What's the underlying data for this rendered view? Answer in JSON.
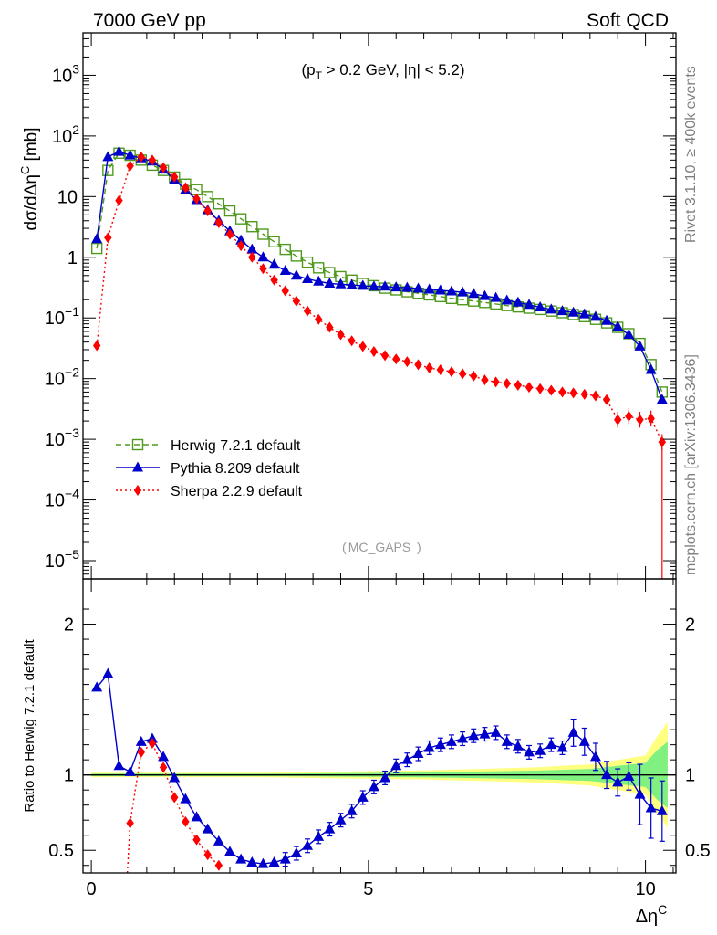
{
  "header": {
    "left": "7000 GeV pp",
    "right": "Soft QCD"
  },
  "side": {
    "top": "Rivet 3.1.10, ≥ 400k events",
    "bottom": "mcplots.cern.ch [arXiv:1306.3436]"
  },
  "annotation": "MC_GAPS",
  "chart_data": [
    {
      "type": "line",
      "panel": "main",
      "title": "(pT > 0.2 GeV, |η| < 5.2)",
      "ylabel": "dσ/dΔη^C [mb]",
      "yscale": "log",
      "ylim": [
        5e-06,
        5000
      ],
      "xlim": [
        -0.15,
        10.55
      ],
      "legend_position": "lower-left",
      "series": [
        {
          "name": "Herwig 7.2.1 default",
          "color": "#4f9a1e",
          "style": "dashed",
          "marker": "open-square",
          "x": [
            0.1,
            0.3,
            0.5,
            0.7,
            0.9,
            1.1,
            1.3,
            1.5,
            1.7,
            1.9,
            2.1,
            2.3,
            2.5,
            2.7,
            2.9,
            3.1,
            3.3,
            3.5,
            3.7,
            3.9,
            4.1,
            4.3,
            4.5,
            4.7,
            4.9,
            5.1,
            5.3,
            5.5,
            5.7,
            5.9,
            6.1,
            6.3,
            6.5,
            6.7,
            6.9,
            7.1,
            7.3,
            7.5,
            7.7,
            7.9,
            8.1,
            8.3,
            8.5,
            8.7,
            8.9,
            9.1,
            9.3,
            9.5,
            9.7,
            9.9,
            10.1,
            10.3
          ],
          "y": [
            1.4,
            27,
            52,
            48,
            40,
            33,
            27,
            21,
            16,
            13,
            10,
            7.6,
            5.8,
            4.3,
            3.2,
            2.4,
            1.8,
            1.35,
            1.05,
            0.83,
            0.67,
            0.56,
            0.48,
            0.42,
            0.37,
            0.34,
            0.31,
            0.29,
            0.27,
            0.255,
            0.24,
            0.225,
            0.21,
            0.2,
            0.19,
            0.18,
            0.17,
            0.16,
            0.152,
            0.145,
            0.138,
            0.13,
            0.122,
            0.114,
            0.105,
            0.095,
            0.083,
            0.07,
            0.055,
            0.038,
            0.017,
            0.006
          ]
        },
        {
          "name": "Pythia 8.209 default",
          "color": "#0000cc",
          "style": "solid",
          "marker": "triangle",
          "x": [
            0.1,
            0.3,
            0.5,
            0.7,
            0.9,
            1.1,
            1.3,
            1.5,
            1.7,
            1.9,
            2.1,
            2.3,
            2.5,
            2.7,
            2.9,
            3.1,
            3.3,
            3.5,
            3.7,
            3.9,
            4.1,
            4.3,
            4.5,
            4.7,
            4.9,
            5.1,
            5.3,
            5.5,
            5.7,
            5.9,
            6.1,
            6.3,
            6.5,
            6.7,
            6.9,
            7.1,
            7.3,
            7.5,
            7.7,
            7.9,
            8.1,
            8.3,
            8.5,
            8.7,
            8.9,
            9.1,
            9.3,
            9.5,
            9.7,
            9.9,
            10.1,
            10.3
          ],
          "y": [
            2.0,
            45,
            55,
            48,
            43,
            38,
            28,
            19,
            13,
            8.8,
            6.0,
            4.0,
            2.7,
            1.9,
            1.35,
            1.0,
            0.76,
            0.6,
            0.5,
            0.44,
            0.4,
            0.37,
            0.36,
            0.35,
            0.34,
            0.33,
            0.33,
            0.32,
            0.315,
            0.305,
            0.295,
            0.285,
            0.275,
            0.265,
            0.25,
            0.23,
            0.215,
            0.195,
            0.18,
            0.165,
            0.15,
            0.138,
            0.13,
            0.123,
            0.115,
            0.105,
            0.09,
            0.072,
            0.053,
            0.034,
            0.014,
            0.0045
          ]
        },
        {
          "name": "Sherpa 2.2.9 default",
          "color": "#ff0000",
          "style": "dotted",
          "marker": "diamond",
          "x": [
            0.1,
            0.3,
            0.5,
            0.7,
            0.9,
            1.1,
            1.3,
            1.5,
            1.7,
            1.9,
            2.1,
            2.3,
            2.5,
            2.7,
            2.9,
            3.1,
            3.3,
            3.5,
            3.7,
            3.9,
            4.1,
            4.3,
            4.5,
            4.7,
            4.9,
            5.1,
            5.3,
            5.5,
            5.7,
            5.9,
            6.1,
            6.3,
            6.5,
            6.7,
            6.9,
            7.1,
            7.3,
            7.5,
            7.7,
            7.9,
            8.1,
            8.3,
            8.5,
            8.7,
            8.9,
            9.1,
            9.3,
            9.5,
            9.7,
            9.9,
            10.1,
            10.3
          ],
          "y": [
            0.035,
            2.1,
            8.6,
            32,
            45,
            40,
            30,
            21,
            14,
            9.2,
            5.8,
            3.7,
            2.4,
            1.55,
            1.0,
            0.65,
            0.42,
            0.28,
            0.19,
            0.13,
            0.095,
            0.07,
            0.053,
            0.042,
            0.034,
            0.028,
            0.024,
            0.021,
            0.019,
            0.017,
            0.015,
            0.014,
            0.013,
            0.012,
            0.011,
            0.0095,
            0.0088,
            0.0083,
            0.0078,
            0.0072,
            0.0068,
            0.0064,
            0.006,
            0.0058,
            0.0055,
            0.0052,
            0.0045,
            0.0021,
            0.0024,
            0.0021,
            0.0022,
            0.0009
          ]
        }
      ]
    },
    {
      "type": "line",
      "panel": "ratio",
      "xlabel": "Δη^C",
      "ylabel": "Ratio to Herwig 7.2.1 default",
      "xlim": [
        -0.15,
        10.55
      ],
      "ylim": [
        0.35,
        2.3
      ],
      "reference_line": 1,
      "series": [
        {
          "name": "Pythia 8.209 default",
          "color": "#0000cc",
          "x": [
            0.1,
            0.3,
            0.5,
            0.7,
            0.9,
            1.1,
            1.3,
            1.5,
            1.7,
            1.9,
            2.1,
            2.3,
            2.5,
            2.7,
            2.9,
            3.1,
            3.3,
            3.5,
            3.7,
            3.9,
            4.1,
            4.3,
            4.5,
            4.7,
            4.9,
            5.1,
            5.3,
            5.5,
            5.7,
            5.9,
            6.1,
            6.3,
            6.5,
            6.7,
            6.9,
            7.1,
            7.3,
            7.5,
            7.7,
            7.9,
            8.1,
            8.3,
            8.5,
            8.7,
            8.9,
            9.1,
            9.3,
            9.5,
            9.7,
            9.9,
            10.1,
            10.3
          ],
          "y": [
            1.58,
            1.67,
            1.06,
            1.02,
            1.22,
            1.24,
            1.12,
            0.98,
            0.84,
            0.72,
            0.64,
            0.56,
            0.49,
            0.44,
            0.42,
            0.41,
            0.42,
            0.44,
            0.48,
            0.53,
            0.59,
            0.64,
            0.7,
            0.76,
            0.85,
            0.92,
            0.98,
            1.06,
            1.1,
            1.14,
            1.18,
            1.2,
            1.22,
            1.24,
            1.26,
            1.27,
            1.28,
            1.22,
            1.19,
            1.15,
            1.16,
            1.2,
            1.18,
            1.28,
            1.22,
            1.12,
            1.0,
            0.95,
            0.99,
            0.87,
            0.78,
            0.76
          ]
        },
        {
          "name": "Sherpa 2.2.9 default",
          "color": "#ff0000",
          "x": [
            0.7,
            0.9,
            1.1,
            1.3,
            1.5,
            1.7,
            1.9,
            2.1,
            2.3
          ],
          "y": [
            0.68,
            1.15,
            1.21,
            1.05,
            0.85,
            0.69,
            0.57,
            0.47,
            0.4
          ]
        }
      ],
      "uncertainty_band": {
        "x": [
          0.0,
          1.0,
          2.0,
          3.0,
          4.0,
          5.0,
          6.0,
          7.0,
          8.0,
          9.0,
          9.5,
          10.0,
          10.2,
          10.4
        ],
        "outer": [
          0.015,
          0.015,
          0.015,
          0.015,
          0.02,
          0.025,
          0.03,
          0.04,
          0.05,
          0.07,
          0.1,
          0.13,
          0.25,
          0.35
        ],
        "inner": [
          0.008,
          0.008,
          0.008,
          0.008,
          0.01,
          0.013,
          0.016,
          0.022,
          0.028,
          0.04,
          0.06,
          0.08,
          0.16,
          0.22
        ],
        "outer_color": "#ffff80",
        "inner_color": "#80f080"
      }
    }
  ]
}
